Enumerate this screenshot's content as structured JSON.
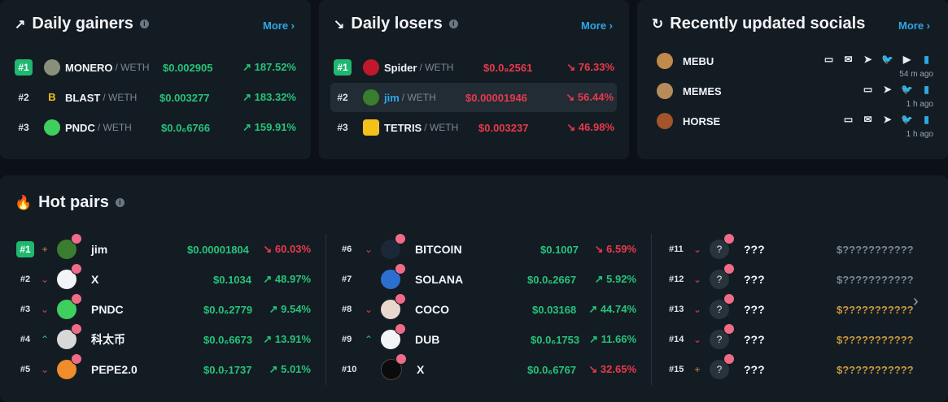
{
  "gainers": {
    "title": "Daily gainers",
    "more": "More",
    "rows": [
      {
        "rank": "#1",
        "symbol": "MONERO",
        "quote": "/ WETH",
        "price": "$0.002905",
        "change": "187.52%"
      },
      {
        "rank": "#2",
        "symbol": "BLAST",
        "quote": "/ WETH",
        "price": "$0.003277",
        "change": "183.32%"
      },
      {
        "rank": "#3",
        "symbol": "PNDC",
        "quote": "/ WETH",
        "price": "$0.0₆6766",
        "change": "159.91%"
      }
    ]
  },
  "losers": {
    "title": "Daily losers",
    "more": "More",
    "rows": [
      {
        "rank": "#1",
        "symbol": "Spider",
        "quote": "/ WETH",
        "price": "$0.0₈2561",
        "change": "76.33%"
      },
      {
        "rank": "#2",
        "symbol": "jim",
        "quote": "/ WETH",
        "price": "$0.00001946",
        "change": "56.44%"
      },
      {
        "rank": "#3",
        "symbol": "TETRIS",
        "quote": "/ WETH",
        "price": "$0.003237",
        "change": "46.98%"
      }
    ]
  },
  "socials": {
    "title": "Recently updated socials",
    "more": "More",
    "rows": [
      {
        "name": "MEBU",
        "time": "54 m ago"
      },
      {
        "name": "MEMES",
        "time": "1 h ago"
      },
      {
        "name": "HORSE",
        "time": "1 h ago"
      }
    ]
  },
  "hot": {
    "title": "Hot pairs",
    "col1": [
      {
        "rank": "#1",
        "name": "jim",
        "price": "$0.00001804",
        "change": "60.03%",
        "dir": "down"
      },
      {
        "rank": "#2",
        "name": "X",
        "price": "$0.1034",
        "change": "48.97%",
        "dir": "up"
      },
      {
        "rank": "#3",
        "name": "PNDC",
        "price": "$0.0₆2779",
        "change": "9.54%",
        "dir": "up"
      },
      {
        "rank": "#4",
        "name": "科太币",
        "price": "$0.0₆6673",
        "change": "13.91%",
        "dir": "up"
      },
      {
        "rank": "#5",
        "name": "PEPE2.0",
        "price": "$0.0₇1737",
        "change": "5.01%",
        "dir": "up"
      }
    ],
    "col2": [
      {
        "rank": "#6",
        "name": "BITCOIN",
        "price": "$0.1007",
        "change": "6.59%",
        "dir": "down"
      },
      {
        "rank": "#7",
        "name": "SOLANA",
        "price": "$0.0₆2667",
        "change": "5.92%",
        "dir": "up"
      },
      {
        "rank": "#8",
        "name": "COCO",
        "price": "$0.03168",
        "change": "44.74%",
        "dir": "up"
      },
      {
        "rank": "#9",
        "name": "DUB",
        "price": "$0.0₆1753",
        "change": "11.66%",
        "dir": "up"
      },
      {
        "rank": "#10",
        "name": "X",
        "price": "$0.0₆6767",
        "change": "32.65%",
        "dir": "down"
      }
    ],
    "col3": [
      {
        "rank": "#11",
        "name": "???",
        "price": "$???????????"
      },
      {
        "rank": "#12",
        "name": "???",
        "price": "$???????????"
      },
      {
        "rank": "#13",
        "name": "???",
        "price": "$???????????"
      },
      {
        "rank": "#14",
        "name": "???",
        "price": "$???????????"
      },
      {
        "rank": "#15",
        "name": "???",
        "price": "$???????????"
      }
    ]
  }
}
